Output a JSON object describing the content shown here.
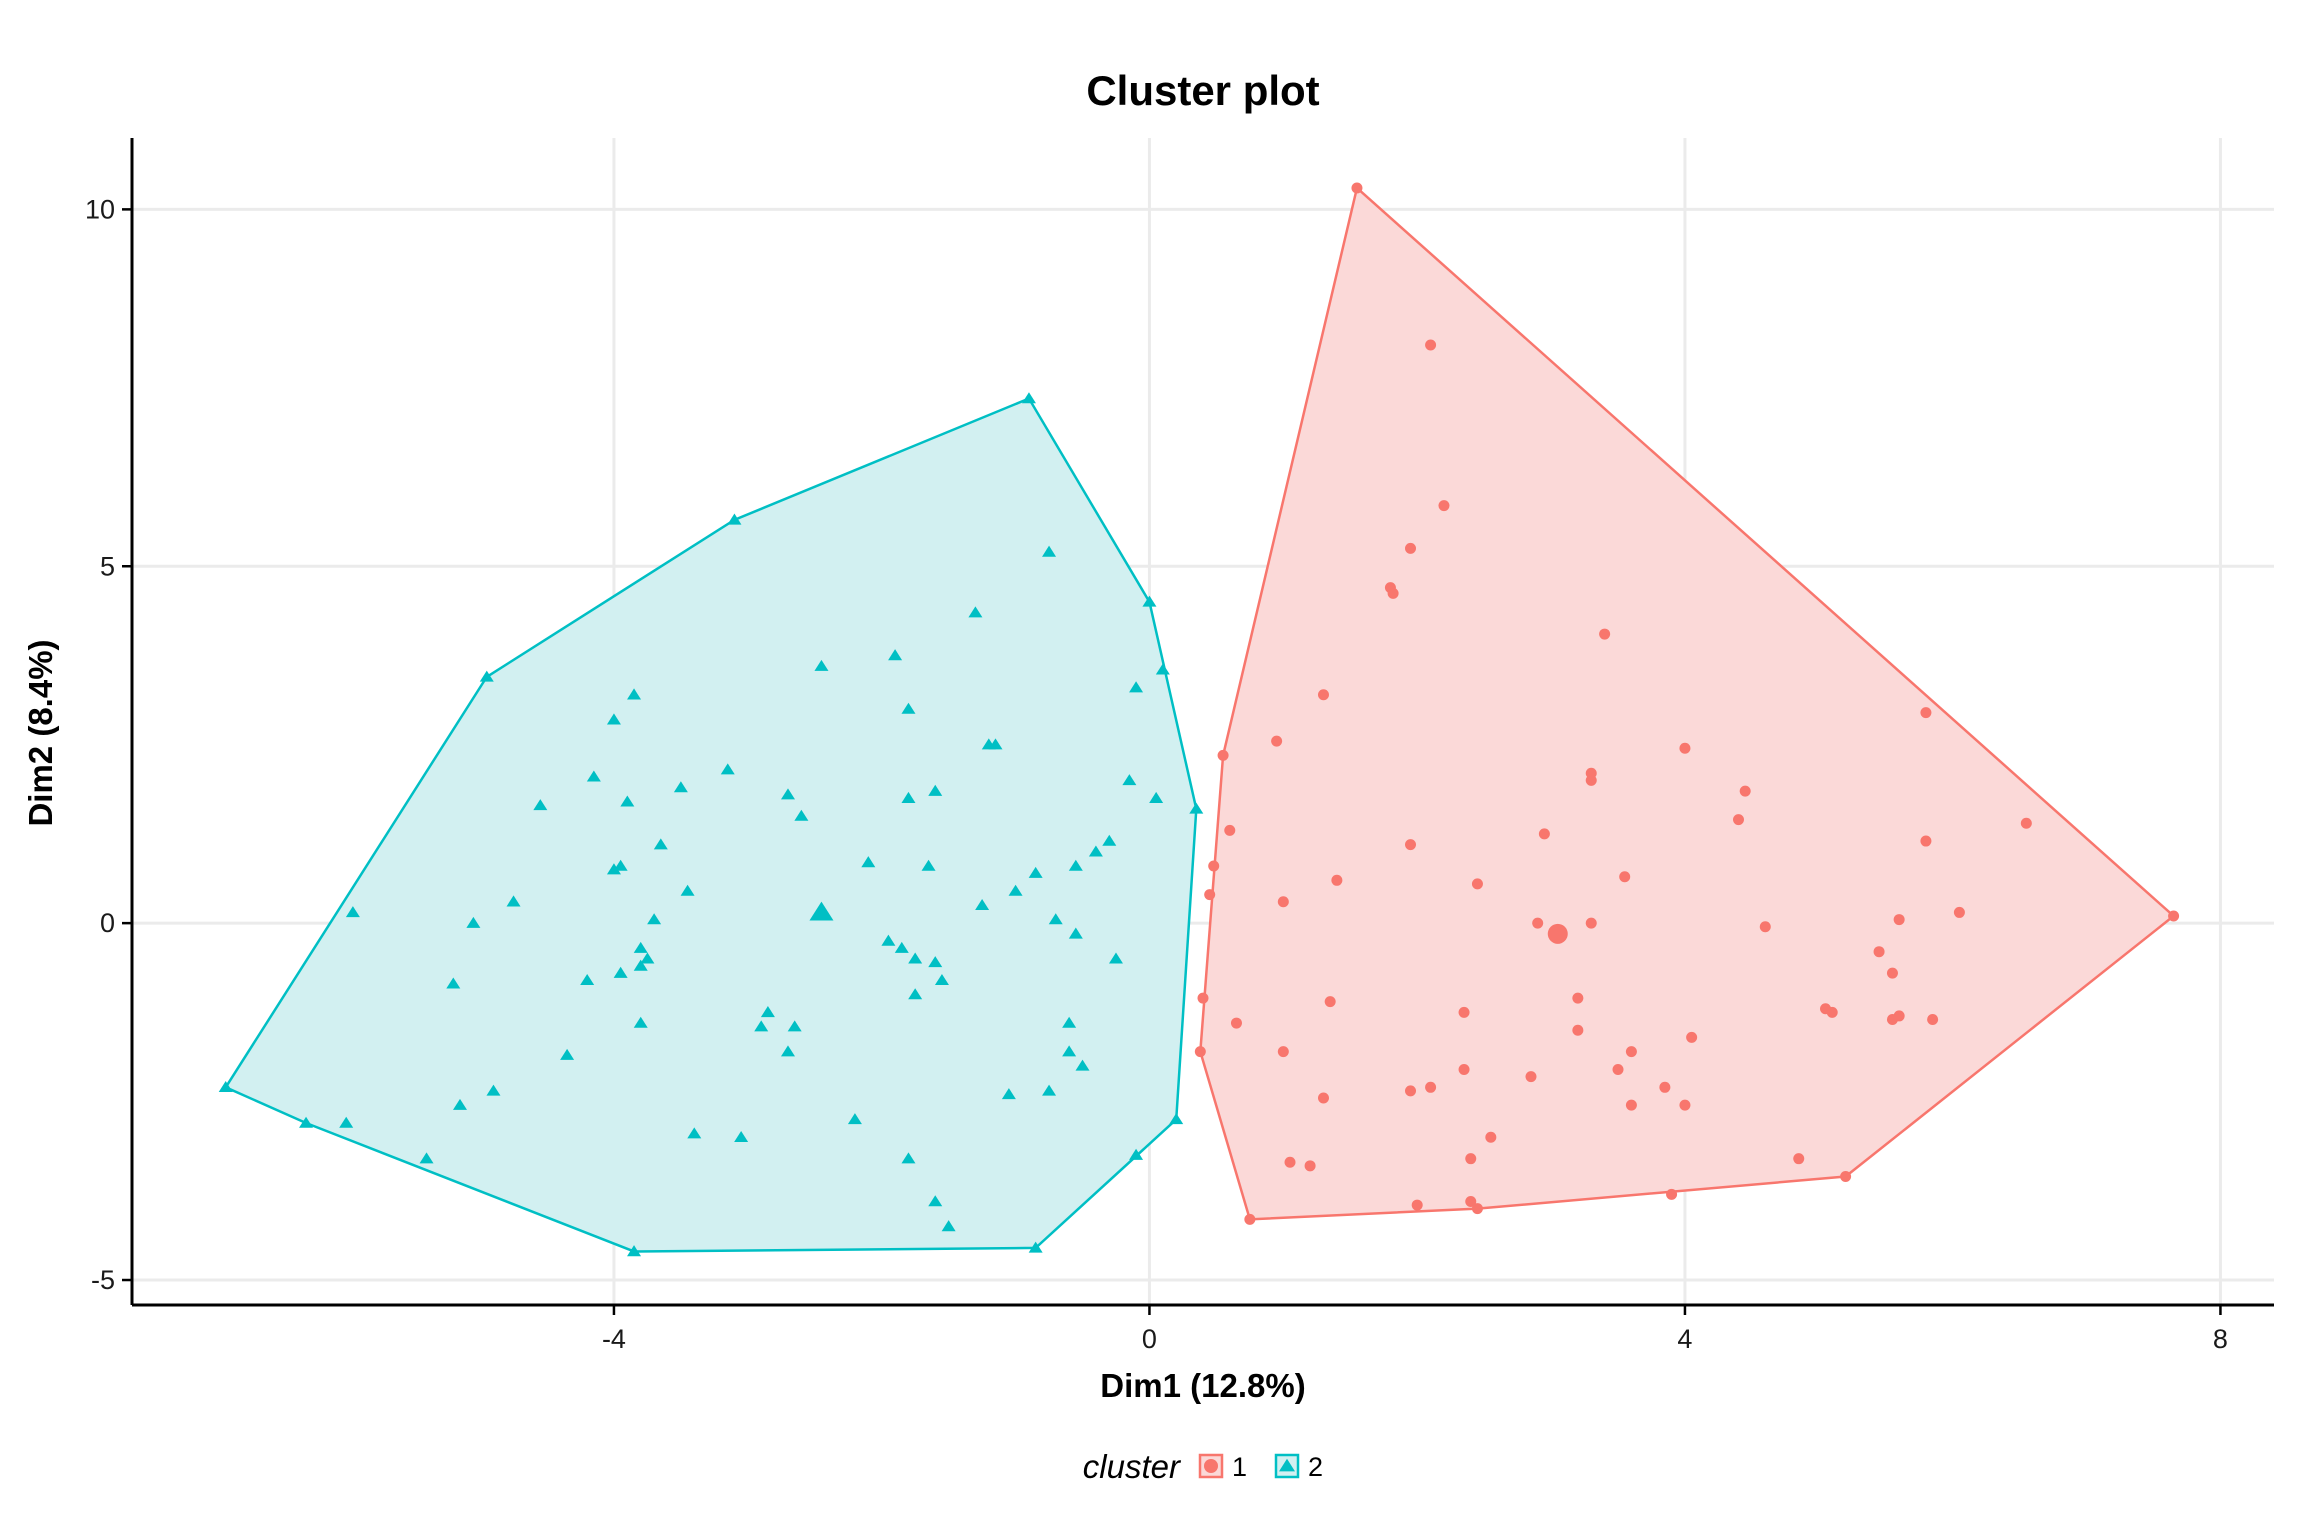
{
  "chart_data": {
    "type": "scatter",
    "title": "Cluster plot",
    "xlabel": "Dim1 (12.8%)",
    "ylabel": "Dim2 (8.4%)",
    "xlim": [
      -7.6,
      8.4
    ],
    "ylim": [
      -5.35,
      11.0
    ],
    "xticks": [
      -4,
      0,
      4,
      8
    ],
    "yticks": [
      -5,
      0,
      5,
      10
    ],
    "xtick_labels": [
      "-4",
      "0",
      "4",
      "8"
    ],
    "ytick_labels": [
      "-5",
      "0",
      "5",
      "10"
    ],
    "grid": true,
    "legend": {
      "title": "cluster",
      "position": "bottom"
    },
    "series": [
      {
        "name": "1",
        "color": "#F8766D",
        "fill": "#FBD9D8",
        "marker": "circle",
        "centroid": [
          3.05,
          -0.15
        ],
        "hull": [
          [
            1.55,
            10.3
          ],
          [
            7.65,
            0.1
          ],
          [
            5.2,
            -3.55
          ],
          [
            2.45,
            -4.0
          ],
          [
            0.75,
            -4.15
          ],
          [
            0.38,
            -1.8
          ],
          [
            0.55,
            2.35
          ]
        ],
        "points": [
          [
            1.55,
            10.3
          ],
          [
            2.1,
            8.1
          ],
          [
            2.2,
            5.85
          ],
          [
            1.95,
            5.25
          ],
          [
            1.8,
            4.7
          ],
          [
            1.82,
            4.62
          ],
          [
            3.4,
            4.05
          ],
          [
            1.3,
            3.2
          ],
          [
            0.95,
            2.55
          ],
          [
            0.55,
            2.35
          ],
          [
            4.0,
            2.45
          ],
          [
            3.3,
            2.1
          ],
          [
            3.3,
            2.0
          ],
          [
            4.45,
            1.85
          ],
          [
            5.8,
            2.95
          ],
          [
            4.4,
            1.45
          ],
          [
            6.55,
            1.4
          ],
          [
            0.6,
            1.3
          ],
          [
            1.95,
            1.1
          ],
          [
            2.95,
            1.25
          ],
          [
            5.8,
            1.15
          ],
          [
            0.48,
            0.8
          ],
          [
            0.45,
            0.4
          ],
          [
            1.0,
            0.3
          ],
          [
            1.4,
            0.6
          ],
          [
            2.45,
            0.55
          ],
          [
            3.55,
            0.65
          ],
          [
            6.05,
            0.15
          ],
          [
            2.9,
            0.0
          ],
          [
            3.3,
            0.0
          ],
          [
            4.6,
            -0.05
          ],
          [
            5.6,
            0.05
          ],
          [
            7.65,
            0.1
          ],
          [
            5.45,
            -0.4
          ],
          [
            5.55,
            -0.7
          ],
          [
            0.4,
            -1.05
          ],
          [
            0.65,
            -1.4
          ],
          [
            1.35,
            -1.1
          ],
          [
            2.35,
            -1.25
          ],
          [
            3.2,
            -1.05
          ],
          [
            3.2,
            -1.5
          ],
          [
            5.05,
            -1.2
          ],
          [
            5.1,
            -1.25
          ],
          [
            5.6,
            -1.3
          ],
          [
            5.85,
            -1.35
          ],
          [
            5.55,
            -1.35
          ],
          [
            0.38,
            -1.8
          ],
          [
            1.0,
            -1.8
          ],
          [
            2.35,
            -2.05
          ],
          [
            3.6,
            -1.8
          ],
          [
            3.5,
            -2.05
          ],
          [
            4.05,
            -1.6
          ],
          [
            1.3,
            -2.45
          ],
          [
            1.95,
            -2.35
          ],
          [
            2.1,
            -2.3
          ],
          [
            2.85,
            -2.15
          ],
          [
            3.6,
            -2.55
          ],
          [
            3.85,
            -2.3
          ],
          [
            4.0,
            -2.55
          ],
          [
            2.55,
            -3.0
          ],
          [
            1.05,
            -3.35
          ],
          [
            1.2,
            -3.4
          ],
          [
            2.4,
            -3.3
          ],
          [
            4.85,
            -3.3
          ],
          [
            5.2,
            -3.55
          ],
          [
            2.0,
            -3.95
          ],
          [
            2.4,
            -3.9
          ],
          [
            2.45,
            -4.0
          ],
          [
            3.9,
            -3.8
          ],
          [
            0.75,
            -4.15
          ]
        ]
      },
      {
        "name": "2",
        "color": "#00BFC4",
        "fill": "#D2F0F1",
        "marker": "triangle",
        "centroid": [
          -2.45,
          0.15
        ],
        "hull": [
          [
            -0.9,
            7.35
          ],
          [
            -3.1,
            5.65
          ],
          [
            -4.95,
            3.45
          ],
          [
            -6.9,
            -2.3
          ],
          [
            -6.3,
            -2.8
          ],
          [
            -3.85,
            -4.6
          ],
          [
            -0.85,
            -4.55
          ],
          [
            0.2,
            -2.75
          ],
          [
            0.35,
            1.6
          ],
          [
            0.0,
            4.5
          ]
        ],
        "points": [
          [
            -0.9,
            7.35
          ],
          [
            -3.1,
            5.65
          ],
          [
            -0.75,
            5.2
          ],
          [
            -4.95,
            3.45
          ],
          [
            0.0,
            4.5
          ],
          [
            -1.3,
            4.35
          ],
          [
            -1.9,
            3.75
          ],
          [
            -2.45,
            3.6
          ],
          [
            0.1,
            3.55
          ],
          [
            -0.1,
            3.3
          ],
          [
            -3.85,
            3.2
          ],
          [
            -1.8,
            3.0
          ],
          [
            -4.0,
            2.85
          ],
          [
            -1.2,
            2.5
          ],
          [
            -1.15,
            2.5
          ],
          [
            -3.15,
            2.15
          ],
          [
            -4.15,
            2.05
          ],
          [
            -0.15,
            2.0
          ],
          [
            -3.5,
            1.9
          ],
          [
            -1.6,
            1.85
          ],
          [
            -2.7,
            1.8
          ],
          [
            -1.8,
            1.75
          ],
          [
            -3.9,
            1.7
          ],
          [
            0.05,
            1.75
          ],
          [
            -4.55,
            1.65
          ],
          [
            0.35,
            1.6
          ],
          [
            -2.6,
            1.5
          ],
          [
            -3.65,
            1.1
          ],
          [
            -0.3,
            1.15
          ],
          [
            -0.4,
            1.0
          ],
          [
            -0.55,
            0.8
          ],
          [
            -2.1,
            0.85
          ],
          [
            -1.65,
            0.8
          ],
          [
            -4.0,
            0.75
          ],
          [
            -3.95,
            0.8
          ],
          [
            -0.85,
            0.7
          ],
          [
            -1.0,
            0.45
          ],
          [
            -3.45,
            0.45
          ],
          [
            -4.75,
            0.3
          ],
          [
            -1.25,
            0.25
          ],
          [
            -5.95,
            0.15
          ],
          [
            -3.7,
            0.05
          ],
          [
            -0.7,
            0.05
          ],
          [
            -5.05,
            0.0
          ],
          [
            -2.45,
            0.15
          ],
          [
            -0.55,
            -0.15
          ],
          [
            -1.95,
            -0.25
          ],
          [
            -1.85,
            -0.35
          ],
          [
            -3.8,
            -0.35
          ],
          [
            -1.75,
            -0.5
          ],
          [
            -3.75,
            -0.5
          ],
          [
            -3.8,
            -0.6
          ],
          [
            -1.6,
            -0.55
          ],
          [
            -0.25,
            -0.5
          ],
          [
            -4.2,
            -0.8
          ],
          [
            -3.95,
            -0.7
          ],
          [
            -1.55,
            -0.8
          ],
          [
            -5.2,
            -0.85
          ],
          [
            -1.75,
            -1.0
          ],
          [
            -2.85,
            -1.25
          ],
          [
            -3.8,
            -1.4
          ],
          [
            -2.9,
            -1.45
          ],
          [
            -2.65,
            -1.45
          ],
          [
            -0.6,
            -1.4
          ],
          [
            -4.35,
            -1.85
          ],
          [
            -2.7,
            -1.8
          ],
          [
            -0.6,
            -1.8
          ],
          [
            -0.5,
            -2.0
          ],
          [
            -4.9,
            -2.35
          ],
          [
            -5.15,
            -2.55
          ],
          [
            -1.05,
            -2.4
          ],
          [
            -0.75,
            -2.35
          ],
          [
            -6.9,
            -2.3
          ],
          [
            -6.3,
            -2.8
          ],
          [
            -6.0,
            -2.8
          ],
          [
            -2.2,
            -2.75
          ],
          [
            -3.4,
            -2.95
          ],
          [
            -3.05,
            -3.0
          ],
          [
            -5.4,
            -3.3
          ],
          [
            -1.8,
            -3.3
          ],
          [
            -0.1,
            -3.25
          ],
          [
            0.2,
            -2.75
          ],
          [
            -1.6,
            -3.9
          ],
          [
            -1.5,
            -4.25
          ],
          [
            -3.85,
            -4.6
          ],
          [
            -0.85,
            -4.55
          ]
        ]
      }
    ]
  }
}
